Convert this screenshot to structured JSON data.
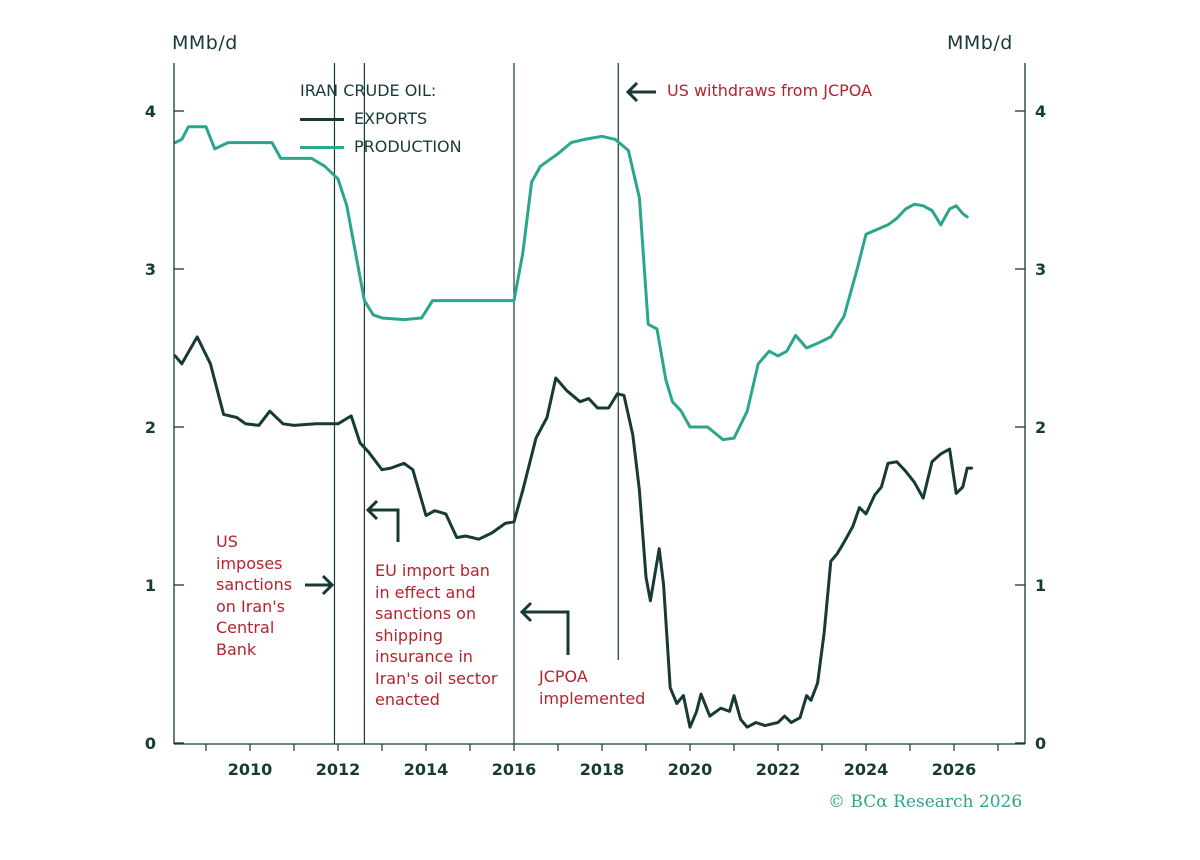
{
  "unit_left": "MMb/d",
  "unit_right": "MMb/d",
  "credit": "© BCα Research 2026",
  "colors": {
    "exports": "#173a36",
    "production": "#2ca58d",
    "annotation": "#b5232d",
    "axis": "#173a36"
  },
  "chart_data": {
    "type": "line",
    "legend_title": "IRAN CRUDE OIL:",
    "series": [
      {
        "name": "EXPORTS",
        "color": "#173a36",
        "points": [
          [
            2008.3,
            2.45
          ],
          [
            2008.45,
            2.4
          ],
          [
            2008.8,
            2.57
          ],
          [
            2009.1,
            2.4
          ],
          [
            2009.4,
            2.08
          ],
          [
            2009.7,
            2.06
          ],
          [
            2009.9,
            2.02
          ],
          [
            2010.2,
            2.01
          ],
          [
            2010.45,
            2.1
          ],
          [
            2010.75,
            2.02
          ],
          [
            2011,
            2.01
          ],
          [
            2011.5,
            2.02
          ],
          [
            2012,
            2.02
          ],
          [
            2012.3,
            2.07
          ],
          [
            2012.5,
            1.9
          ],
          [
            2012.7,
            1.84
          ],
          [
            2013,
            1.73
          ],
          [
            2013.2,
            1.74
          ],
          [
            2013.5,
            1.77
          ],
          [
            2013.7,
            1.73
          ],
          [
            2014,
            1.44
          ],
          [
            2014.2,
            1.47
          ],
          [
            2014.45,
            1.45
          ],
          [
            2014.7,
            1.3
          ],
          [
            2014.9,
            1.31
          ],
          [
            2015.2,
            1.29
          ],
          [
            2015.5,
            1.33
          ],
          [
            2015.8,
            1.39
          ],
          [
            2016,
            1.4
          ],
          [
            2016.2,
            1.6
          ],
          [
            2016.5,
            1.93
          ],
          [
            2016.75,
            2.06
          ],
          [
            2016.95,
            2.31
          ],
          [
            2017.2,
            2.23
          ],
          [
            2017.5,
            2.16
          ],
          [
            2017.7,
            2.18
          ],
          [
            2017.9,
            2.12
          ],
          [
            2018.15,
            2.12
          ],
          [
            2018.35,
            2.21
          ],
          [
            2018.5,
            2.2
          ],
          [
            2018.7,
            1.95
          ],
          [
            2018.85,
            1.6
          ],
          [
            2019,
            1.05
          ],
          [
            2019.1,
            0.9
          ],
          [
            2019.3,
            1.23
          ],
          [
            2019.4,
            1.0
          ],
          [
            2019.55,
            0.35
          ],
          [
            2019.7,
            0.25
          ],
          [
            2019.85,
            0.3
          ],
          [
            2020,
            0.1
          ],
          [
            2020.15,
            0.2
          ],
          [
            2020.25,
            0.31
          ],
          [
            2020.45,
            0.17
          ],
          [
            2020.7,
            0.22
          ],
          [
            2020.9,
            0.2
          ],
          [
            2021,
            0.3
          ],
          [
            2021.15,
            0.15
          ],
          [
            2021.3,
            0.1
          ],
          [
            2021.5,
            0.13
          ],
          [
            2021.7,
            0.11
          ],
          [
            2022,
            0.13
          ],
          [
            2022.15,
            0.17
          ],
          [
            2022.3,
            0.13
          ],
          [
            2022.5,
            0.16
          ],
          [
            2022.65,
            0.3
          ],
          [
            2022.75,
            0.27
          ],
          [
            2022.9,
            0.38
          ],
          [
            2023.05,
            0.7
          ],
          [
            2023.2,
            1.15
          ],
          [
            2023.35,
            1.2
          ],
          [
            2023.5,
            1.27
          ],
          [
            2023.7,
            1.37
          ],
          [
            2023.85,
            1.49
          ],
          [
            2024,
            1.45
          ],
          [
            2024.2,
            1.57
          ],
          [
            2024.35,
            1.62
          ],
          [
            2024.5,
            1.77
          ],
          [
            2024.7,
            1.78
          ],
          [
            2024.9,
            1.72
          ],
          [
            2025.1,
            1.65
          ],
          [
            2025.3,
            1.55
          ],
          [
            2025.5,
            1.78
          ],
          [
            2025.7,
            1.83
          ],
          [
            2025.9,
            1.86
          ],
          [
            2026.05,
            1.58
          ],
          [
            2026.2,
            1.62
          ],
          [
            2026.3,
            1.74
          ],
          [
            2026.4,
            1.74
          ]
        ]
      },
      {
        "name": "PRODUCTION",
        "color": "#2ca58d",
        "points": [
          [
            2008.3,
            3.8
          ],
          [
            2008.45,
            3.82
          ],
          [
            2008.6,
            3.9
          ],
          [
            2009,
            3.9
          ],
          [
            2009.2,
            3.76
          ],
          [
            2009.5,
            3.8
          ],
          [
            2010,
            3.8
          ],
          [
            2010.5,
            3.8
          ],
          [
            2010.7,
            3.7
          ],
          [
            2011.4,
            3.7
          ],
          [
            2011.7,
            3.65
          ],
          [
            2012,
            3.57
          ],
          [
            2012.2,
            3.4
          ],
          [
            2012.4,
            3.1
          ],
          [
            2012.6,
            2.8
          ],
          [
            2012.8,
            2.71
          ],
          [
            2013,
            2.69
          ],
          [
            2013.5,
            2.68
          ],
          [
            2013.9,
            2.69
          ],
          [
            2014.15,
            2.8
          ],
          [
            2014.6,
            2.8
          ],
          [
            2015.5,
            2.8
          ],
          [
            2016,
            2.8
          ],
          [
            2016.2,
            3.1
          ],
          [
            2016.4,
            3.55
          ],
          [
            2016.6,
            3.65
          ],
          [
            2017,
            3.73
          ],
          [
            2017.3,
            3.8
          ],
          [
            2017.6,
            3.82
          ],
          [
            2018,
            3.84
          ],
          [
            2018.3,
            3.82
          ],
          [
            2018.6,
            3.75
          ],
          [
            2018.85,
            3.45
          ],
          [
            2019.05,
            2.65
          ],
          [
            2019.25,
            2.62
          ],
          [
            2019.45,
            2.3
          ],
          [
            2019.6,
            2.16
          ],
          [
            2019.8,
            2.1
          ],
          [
            2020,
            2.0
          ],
          [
            2020.4,
            2.0
          ],
          [
            2020.75,
            1.92
          ],
          [
            2021,
            1.93
          ],
          [
            2021.3,
            2.1
          ],
          [
            2021.55,
            2.4
          ],
          [
            2021.8,
            2.48
          ],
          [
            2022,
            2.45
          ],
          [
            2022.2,
            2.48
          ],
          [
            2022.4,
            2.58
          ],
          [
            2022.65,
            2.5
          ],
          [
            2022.9,
            2.53
          ],
          [
            2023.2,
            2.57
          ],
          [
            2023.5,
            2.7
          ],
          [
            2023.8,
            3.0
          ],
          [
            2024,
            3.22
          ],
          [
            2024.25,
            3.25
          ],
          [
            2024.5,
            3.28
          ],
          [
            2024.7,
            3.32
          ],
          [
            2024.9,
            3.38
          ],
          [
            2025.1,
            3.41
          ],
          [
            2025.3,
            3.4
          ],
          [
            2025.5,
            3.37
          ],
          [
            2025.7,
            3.28
          ],
          [
            2025.9,
            3.38
          ],
          [
            2026.05,
            3.4
          ],
          [
            2026.2,
            3.35
          ],
          [
            2026.3,
            3.33
          ]
        ]
      }
    ],
    "xlim": [
      2008.3,
      2027.2
    ],
    "ylim": [
      0,
      4.3
    ],
    "x_ticks": [
      "2010",
      "2012",
      "2014",
      "2016",
      "2018",
      "2020",
      "2022",
      "2024",
      "2026"
    ],
    "y_ticks": [
      "0",
      "1",
      "2",
      "3",
      "4"
    ],
    "events": [
      2011.92,
      2012.6,
      2016.0,
      2018.37
    ],
    "annotations": [
      {
        "lines": [
          "US",
          "imposes",
          "sanctions",
          "on Iran's",
          "Central",
          "Bank"
        ],
        "x": 2011.92
      },
      {
        "lines": [
          "EU import ban",
          "in effect and",
          "sanctions on",
          "shipping",
          "insurance in",
          "Iran's oil sector",
          "enacted"
        ],
        "x": 2012.6
      },
      {
        "lines": [
          "JCPOA",
          "implemented"
        ],
        "x": 2016.0
      },
      {
        "lines": [
          "US withdraws from JCPOA"
        ],
        "x": 2018.37
      }
    ]
  }
}
